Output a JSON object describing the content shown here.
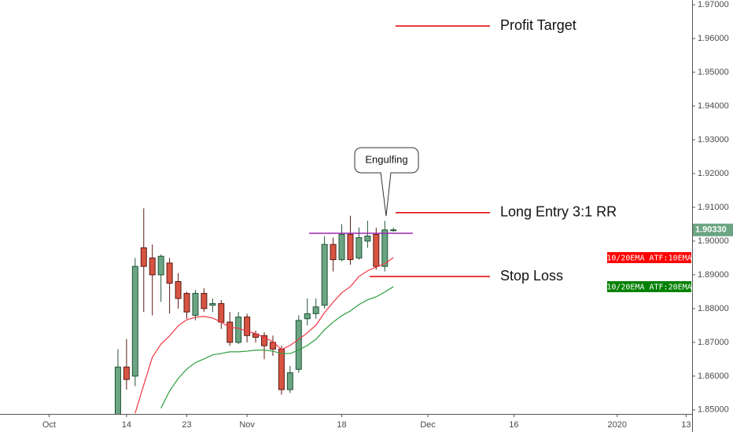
{
  "chart_data": {
    "type": "candlestick",
    "open": [
      1.844,
      1.8627,
      1.86,
      1.898,
      1.895,
      1.89,
      1.8935,
      1.888,
      1.8845,
      1.878,
      1.8845,
      1.881,
      1.8815,
      1.876,
      1.87,
      1.8775,
      1.8725,
      1.872,
      1.87,
      1.868,
      1.856,
      1.862,
      1.877,
      1.8785,
      1.881,
      1.899,
      1.8945,
      1.902,
      1.895,
      1.9,
      1.902,
      1.8925,
      1.9033
    ],
    "high": [
      1.868,
      1.871,
      1.895,
      1.9097,
      1.899,
      1.896,
      1.895,
      1.8905,
      1.885,
      1.8855,
      1.886,
      1.883,
      1.8825,
      1.879,
      1.879,
      1.8785,
      1.8735,
      1.873,
      1.872,
      1.869,
      1.863,
      1.878,
      1.883,
      1.883,
      1.9015,
      1.901,
      1.905,
      1.9075,
      1.904,
      1.906,
      1.904,
      1.906,
      1.904
    ],
    "low": [
      1.84,
      1.856,
      1.857,
      1.879,
      1.878,
      1.882,
      1.8785,
      1.88,
      1.877,
      1.8765,
      1.879,
      1.879,
      1.874,
      1.869,
      1.8695,
      1.87,
      1.87,
      1.865,
      1.866,
      1.8545,
      1.855,
      1.861,
      1.875,
      1.877,
      1.88,
      1.891,
      1.894,
      1.893,
      1.8945,
      1.898,
      1.8915,
      1.891,
      1.9028
    ],
    "close": [
      1.8627,
      1.859,
      1.8925,
      1.8925,
      1.89,
      1.8955,
      1.8875,
      1.883,
      1.879,
      1.8845,
      1.88,
      1.8815,
      1.876,
      1.87,
      1.8775,
      1.872,
      1.8715,
      1.869,
      1.868,
      1.856,
      1.861,
      1.8765,
      1.8785,
      1.8805,
      1.899,
      1.8945,
      1.902,
      1.8945,
      1.901,
      1.9015,
      1.8925,
      1.9033,
      1.9033
    ],
    "up_color": "#6ba583",
    "down_color": "#d75442",
    "lines": [
      {
        "name": "10/20EMA ATF:10EMA",
        "color": "#f23645",
        "values": [
          null,
          null,
          1.849,
          1.8574,
          1.8656,
          1.8695,
          1.8719,
          1.8749,
          1.8767,
          1.8774,
          1.8777,
          1.8772,
          1.876,
          1.8744,
          1.8742,
          1.8733,
          1.8726,
          1.8714,
          1.8702,
          1.8679,
          1.8691,
          1.8709,
          1.8728,
          1.8751,
          1.8788,
          1.8819,
          1.8847,
          1.8865,
          1.8895,
          1.8912,
          1.8923,
          1.8933,
          1.8951
        ]
      },
      {
        "name": "10/20EMA ATF:20EMA",
        "color": "#2e9e3e",
        "values": [
          null,
          null,
          null,
          null,
          null,
          1.8505,
          1.8556,
          1.8593,
          1.8621,
          1.864,
          1.8651,
          1.8663,
          1.8667,
          1.8672,
          1.8672,
          1.8674,
          1.8677,
          1.8677,
          1.8674,
          1.8667,
          1.8667,
          1.8677,
          1.8691,
          1.8709,
          1.8737,
          1.876,
          1.8779,
          1.8793,
          1.8812,
          1.8826,
          1.8835,
          1.8849,
          1.8865
        ]
      }
    ],
    "tag_colors": [
      "#ff0000",
      "#008000"
    ],
    "last_price": {
      "value": 1.9033,
      "label": "1.90330"
    },
    "ylim": [
      1.8488,
      1.9714
    ],
    "yticks": [
      {
        "value": 1.97,
        "label": "1.97000"
      },
      {
        "value": 1.96,
        "label": "1.96000"
      },
      {
        "value": 1.95,
        "label": "1.95000"
      },
      {
        "value": 1.94,
        "label": "1.94000"
      },
      {
        "value": 1.93,
        "label": "1.93000"
      },
      {
        "value": 1.92,
        "label": "1.92000"
      },
      {
        "value": 1.91,
        "label": "1.91000"
      },
      {
        "value": 1.9,
        "label": "1.90000"
      },
      {
        "value": 1.89,
        "label": "1.89000"
      },
      {
        "value": 1.88,
        "label": "1.88000"
      },
      {
        "value": 1.87,
        "label": "1.87000"
      },
      {
        "value": 1.86,
        "label": "1.86000"
      },
      {
        "value": 1.85,
        "label": "1.85000"
      }
    ],
    "xlim": [
      -13.7,
      66.7
    ],
    "xticks": [
      {
        "value": -8,
        "label": "Oct"
      },
      {
        "value": 1,
        "label": "14"
      },
      {
        "value": 8,
        "label": "23"
      },
      {
        "value": 15,
        "label": "Nov"
      },
      {
        "value": 26,
        "label": "18"
      },
      {
        "value": 36,
        "label": "Dec"
      },
      {
        "value": 46,
        "label": "16"
      },
      {
        "value": 58,
        "label": "2020"
      },
      {
        "value": 66,
        "label": "13"
      }
    ],
    "levels": [
      {
        "text": "Profit Target",
        "value": 1.9637
      },
      {
        "text": "Long Entry 3:1 RR",
        "value": 1.9084
      },
      {
        "text": "Stop Loss",
        "value": 1.8895
      }
    ],
    "range_line": 1.9023,
    "callout": "Engulfing"
  }
}
